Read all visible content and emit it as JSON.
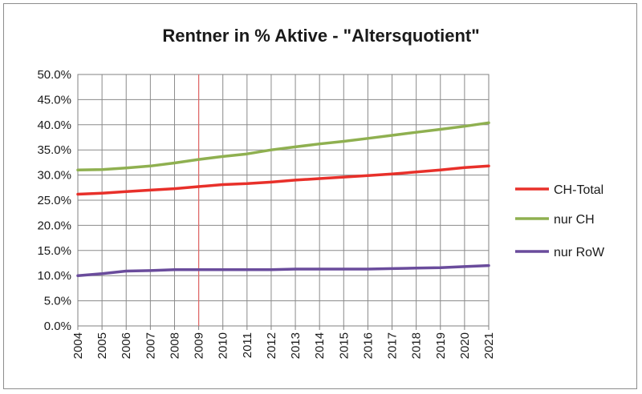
{
  "chart_data": {
    "type": "line",
    "title": "Rentner in % Aktive - \"Altersquotient\"",
    "xlabel": "",
    "ylabel": "",
    "x": [
      "2004",
      "2005",
      "2006",
      "2007",
      "2008",
      "2009",
      "2010",
      "2011",
      "2012",
      "2013",
      "2014",
      "2015",
      "2016",
      "2017",
      "2018",
      "2019",
      "2020",
      "2021"
    ],
    "ylim": [
      0,
      0.5
    ],
    "y_tick_labels": [
      "0.0%",
      "5.0%",
      "10.0%",
      "15.0%",
      "20.0%",
      "25.0%",
      "30.0%",
      "35.0%",
      "40.0%",
      "45.0%",
      "50.0%"
    ],
    "grid": true,
    "legend_position": "right",
    "marker_line_x": "2009",
    "marker_line_color": "#e06666",
    "series": [
      {
        "name": "CH-Total",
        "color": "#e8302a",
        "values": [
          0.262,
          0.264,
          0.267,
          0.27,
          0.273,
          0.277,
          0.281,
          0.283,
          0.286,
          0.29,
          0.293,
          0.296,
          0.299,
          0.302,
          0.306,
          0.31,
          0.315,
          0.318
        ]
      },
      {
        "name": "nur CH",
        "color": "#8fb050",
        "values": [
          0.31,
          0.311,
          0.314,
          0.318,
          0.324,
          0.331,
          0.337,
          0.342,
          0.35,
          0.356,
          0.362,
          0.367,
          0.373,
          0.379,
          0.385,
          0.391,
          0.397,
          0.404
        ]
      },
      {
        "name": "nur RoW",
        "color": "#6a4c9c",
        "values": [
          0.1,
          0.104,
          0.109,
          0.11,
          0.112,
          0.112,
          0.112,
          0.112,
          0.112,
          0.113,
          0.113,
          0.113,
          0.113,
          0.114,
          0.115,
          0.116,
          0.118,
          0.12
        ]
      }
    ]
  }
}
